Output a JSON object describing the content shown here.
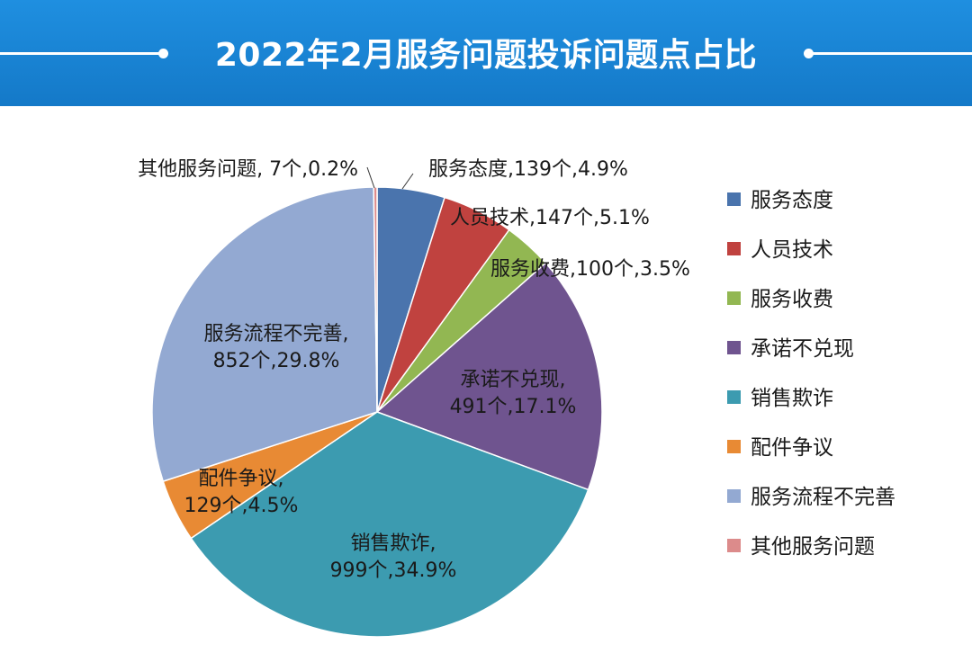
{
  "header": {
    "title": "2022年2月服务问题投诉问题点占比"
  },
  "chart_data": {
    "type": "pie",
    "title": "2022年2月服务问题投诉问题点占比",
    "legend_position": "right",
    "slices": [
      {
        "name": "服务态度",
        "count": 139,
        "percent": 4.9,
        "color": "#4a74ad",
        "label": "服务态度,139个,4.9%"
      },
      {
        "name": "人员技术",
        "count": 147,
        "percent": 5.1,
        "color": "#c0423f",
        "label": "人员技术,147个,5.1%"
      },
      {
        "name": "服务收费",
        "count": 100,
        "percent": 3.5,
        "color": "#92b752",
        "label": "服务收费,100个,3.5%"
      },
      {
        "name": "承诺不兑现",
        "count": 491,
        "percent": 17.1,
        "color": "#6f548f",
        "label_lines": [
          "承诺不兑现,",
          "491个,17.1%"
        ]
      },
      {
        "name": "销售欺诈",
        "count": 999,
        "percent": 34.9,
        "color": "#3c9bb0",
        "label_lines": [
          "销售欺诈,",
          "999个,34.9%"
        ]
      },
      {
        "name": "配件争议",
        "count": 129,
        "percent": 4.5,
        "color": "#e88a34",
        "label_lines": [
          "配件争议,",
          "129个,4.5%"
        ]
      },
      {
        "name": "服务流程不完善",
        "count": 852,
        "percent": 29.8,
        "color": "#93a9d2",
        "label_lines": [
          "服务流程不完善,",
          "852个,29.8%"
        ]
      },
      {
        "name": "其他服务问题",
        "count": 7,
        "percent": 0.2,
        "color": "#dc8b8b",
        "label": "其他服务问题, 7个,0.2%"
      }
    ]
  }
}
